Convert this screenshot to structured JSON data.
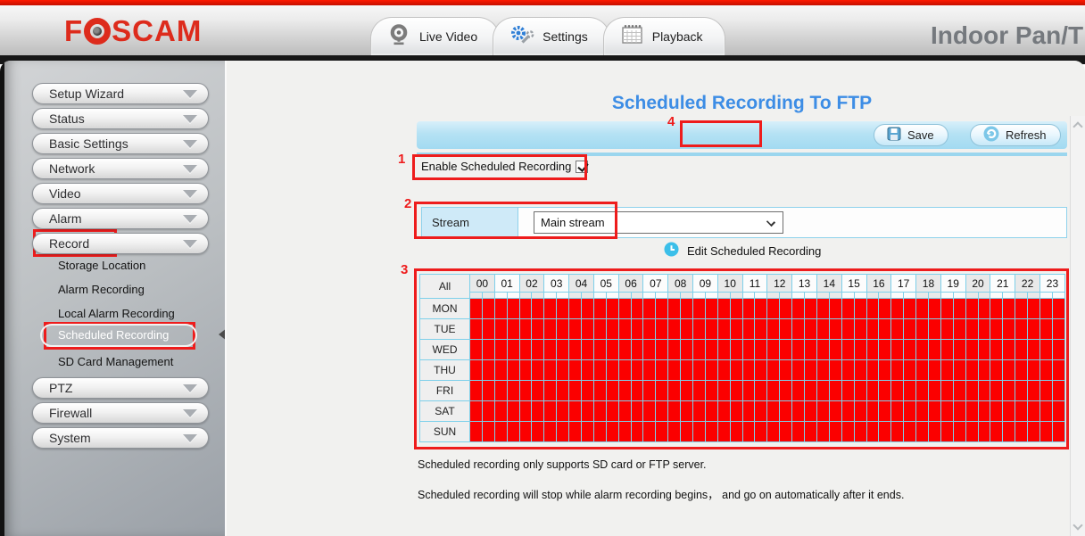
{
  "header": {
    "logo_prefix": "F",
    "logo_suffix": "SCAM",
    "device_title": "Indoor Pan/T",
    "tabs": [
      {
        "label": "Live Video",
        "icon": "webcam-icon"
      },
      {
        "label": "Settings",
        "icon": "gears-icon"
      },
      {
        "label": "Playback",
        "icon": "calendar-icon"
      }
    ]
  },
  "sidebar": {
    "top_buttons": [
      "Setup Wizard",
      "Status",
      "Basic Settings",
      "Network",
      "Video",
      "Alarm",
      "Record"
    ],
    "annotated_button": "Record",
    "subnav": {
      "items": [
        "Storage Location",
        "Alarm Recording",
        "Local Alarm Recording",
        "Scheduled Recording",
        "SD Card Management"
      ],
      "selected_index": 3
    },
    "bottom_buttons": [
      "PTZ",
      "Firewall",
      "System"
    ]
  },
  "main": {
    "page_title": "Scheduled Recording To FTP",
    "toolbar": {
      "save_label": "Save",
      "refresh_label": "Refresh"
    },
    "enable_label": "Enable Scheduled Recording",
    "enable_checked": true,
    "stream_label": "Stream",
    "stream_value": "Main stream",
    "edit_label": "Edit Scheduled Recording",
    "notes": [
      "Scheduled recording only supports SD card or FTP server.",
      "Scheduled recording will stop while alarm recording begins， and go on automatically after it ends."
    ]
  },
  "schedule": {
    "corner_label": "All",
    "hours": [
      "00",
      "01",
      "02",
      "03",
      "04",
      "05",
      "06",
      "07",
      "08",
      "09",
      "10",
      "11",
      "12",
      "13",
      "14",
      "15",
      "16",
      "17",
      "18",
      "19",
      "20",
      "21",
      "22",
      "23"
    ],
    "days": [
      "MON",
      "TUE",
      "WED",
      "THU",
      "FRI",
      "SAT",
      "SUN"
    ],
    "half_slots_per_hour": 2,
    "all_selected": true
  },
  "annotations": [
    "1",
    "2",
    "3",
    "4"
  ],
  "colors": {
    "accent_blue": "#3d8de5",
    "toolbar_blue": "#aadcf0",
    "grid_red": "#fb0000",
    "grid_border": "#7ed0ea",
    "annotation_red": "#ee1c1c",
    "logo_red": "#dd2b1c"
  }
}
